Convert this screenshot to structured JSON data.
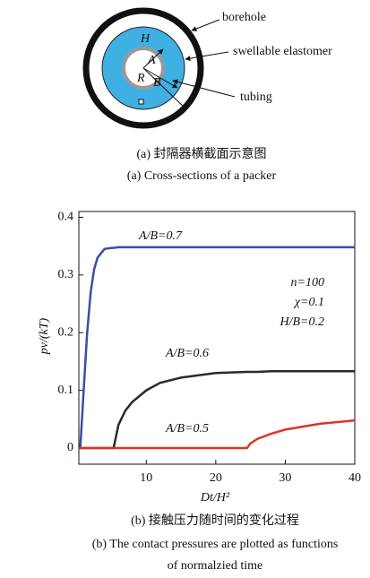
{
  "diagram": {
    "labels": {
      "borehole": "borehole",
      "elastomer": "swellable elastomer",
      "tubing": "tubing",
      "H": "H",
      "A": "A",
      "R": "R",
      "B": "B"
    },
    "caption_zh": "(a) 封隔器横截面示意图",
    "caption_en": "(a) Cross-sections of a packer"
  },
  "chart_data": {
    "type": "line",
    "x_label": "Dt/H²",
    "y_label": "pv/(kT)",
    "annotations": [
      "n=100",
      "χ=0.1",
      "H/B=0.2"
    ],
    "xlim": [
      0.3,
      40
    ],
    "ylim": [
      -0.028,
      0.41
    ],
    "xticks": [
      10,
      20,
      30,
      40
    ],
    "yticks": [
      0,
      0.1,
      0.2,
      0.3,
      0.4
    ],
    "x": [
      0.3,
      0.5,
      1,
      1.5,
      2,
      2.5,
      3,
      4,
      5,
      5.3,
      6,
      7,
      8,
      10,
      12,
      15,
      20,
      24.5,
      25,
      26,
      28,
      30,
      35,
      40
    ],
    "series": [
      {
        "name": "A/B=0.7",
        "color": "#3a4ea6",
        "values": [
          0,
          0,
          0.1,
          0.2,
          0.27,
          0.31,
          0.33,
          0.345,
          0.347,
          0.347,
          0.348,
          0.348,
          0.348,
          0.348,
          0.348,
          0.348,
          0.348,
          0.348,
          0.348,
          0.348,
          0.348,
          0.348,
          0.348,
          0.348
        ]
      },
      {
        "name": "A/B=0.6",
        "color": "#2a2a2a",
        "values": [
          0,
          0,
          0,
          0,
          0,
          0,
          0,
          0,
          0,
          0,
          0.04,
          0.065,
          0.08,
          0.1,
          0.113,
          0.122,
          0.13,
          0.132,
          0.132,
          0.132,
          0.133,
          0.133,
          0.133,
          0.133
        ]
      },
      {
        "name": "A/B=0.5",
        "color": "#d8352b",
        "values": [
          0,
          0,
          0,
          0,
          0,
          0,
          0,
          0,
          0,
          0,
          0,
          0,
          0,
          0,
          0,
          0,
          0,
          0,
          0.008,
          0.016,
          0.025,
          0.032,
          0.042,
          0.048
        ]
      }
    ],
    "caption_zh": "(b) 接触压力随时间的变化过程",
    "caption_en": [
      "(b) The contact pressures are plotted as functions",
      "of normalzied time"
    ]
  }
}
